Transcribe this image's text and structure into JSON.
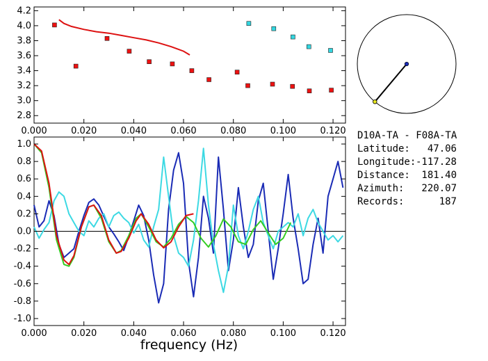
{
  "station_info": {
    "pair": "D10A-TA  -  F08A-TA",
    "latitude_label": "Latitude:",
    "latitude_value": "47.06",
    "longitude_label": "Longitude:",
    "longitude_value": "-117.28",
    "distance_label": "Distance:",
    "distance_value": "181.40",
    "azimuth_label": "Azimuth:",
    "azimuth_value": "220.07",
    "records_label": "Records:",
    "records_value": "187"
  },
  "chart_data": [
    {
      "type": "scatter",
      "xlim": [
        0.0,
        0.125
      ],
      "ylim": [
        2.7,
        4.25
      ],
      "x_ticks": [
        "0.000",
        "0.020",
        "0.040",
        "0.060",
        "0.080",
        "0.100",
        "0.120"
      ],
      "y_ticks": [
        "2.8",
        "3.0",
        "3.2",
        "3.4",
        "3.6",
        "3.8",
        "4.0",
        "4.2"
      ],
      "colors": {
        "red": "#ee1111",
        "cyan": "#33d6e0",
        "curve": "#dd1111"
      },
      "series": [
        {
          "marker": "red-square",
          "x": [
            0.0082,
            0.0168,
            0.0293,
            0.0382,
            0.0462,
            0.0555,
            0.0633,
            0.0702,
            0.0815,
            0.0858,
            0.0957,
            0.1037,
            0.1105,
            0.1193
          ],
          "y": [
            4.01,
            3.46,
            3.83,
            3.66,
            3.52,
            3.49,
            3.4,
            3.28,
            3.38,
            3.2,
            3.22,
            3.19,
            3.13,
            3.14
          ]
        },
        {
          "marker": "cyan-square",
          "x": [
            0.0862,
            0.0962,
            0.1039,
            0.1103,
            0.119
          ],
          "y": [
            4.03,
            3.96,
            3.85,
            3.72,
            3.67
          ]
        },
        {
          "marker": "red-line",
          "x": [
            0.01,
            0.012,
            0.015,
            0.02,
            0.025,
            0.03,
            0.035,
            0.04,
            0.045,
            0.05,
            0.055,
            0.06,
            0.0625
          ],
          "y": [
            4.08,
            4.03,
            3.99,
            3.95,
            3.92,
            3.9,
            3.87,
            3.84,
            3.81,
            3.77,
            3.72,
            3.66,
            3.61
          ]
        }
      ]
    },
    {
      "type": "polar-marker",
      "azimuth_deg": 220.07
    },
    {
      "type": "line",
      "xlim": [
        0.0,
        0.125
      ],
      "ylim": [
        -1.08,
        1.08
      ],
      "xlabel": "frequency (Hz)",
      "x_ticks": [
        "0.000",
        "0.020",
        "0.040",
        "0.060",
        "0.080",
        "0.100",
        "0.120"
      ],
      "y_ticks": [
        "1.0",
        "0.8",
        "0.6",
        "0.4",
        "0.2",
        "0.0",
        "-0.2",
        "-0.4",
        "-0.6",
        "-0.8",
        "-1.0"
      ],
      "y_tick_values": [
        1.0,
        0.8,
        0.6,
        0.4,
        0.2,
        0.0,
        -0.2,
        -0.4,
        -0.6,
        -0.8,
        -1.0
      ],
      "colors": {
        "blue": "#1a2bb5",
        "cyan": "#3cd9e3",
        "green": "#33cc22",
        "red": "#dd1111"
      },
      "series": [
        {
          "marker": "blue",
          "x": [
            0.0,
            0.002,
            0.004,
            0.006,
            0.008,
            0.01,
            0.012,
            0.014,
            0.016,
            0.018,
            0.02,
            0.022,
            0.024,
            0.026,
            0.028,
            0.03,
            0.032,
            0.034,
            0.036,
            0.038,
            0.04,
            0.042,
            0.044,
            0.046,
            0.048,
            0.05,
            0.052,
            0.054,
            0.056,
            0.058,
            0.06,
            0.062,
            0.064,
            0.066,
            0.068,
            0.07,
            0.072,
            0.074,
            0.076,
            0.078,
            0.08,
            0.082,
            0.084,
            0.086,
            0.088,
            0.09,
            0.092,
            0.094,
            0.096,
            0.098,
            0.1,
            0.102,
            0.104,
            0.106,
            0.108,
            0.11,
            0.112,
            0.114,
            0.116,
            0.118,
            0.12,
            0.122,
            0.124
          ],
          "y": [
            0.3,
            0.05,
            0.12,
            0.35,
            0.18,
            -0.15,
            -0.3,
            -0.25,
            -0.2,
            0.0,
            0.18,
            0.33,
            0.37,
            0.3,
            0.17,
            0.05,
            -0.03,
            -0.12,
            -0.22,
            -0.06,
            0.12,
            0.3,
            0.18,
            -0.1,
            -0.5,
            -0.82,
            -0.6,
            0.25,
            0.7,
            0.9,
            0.55,
            -0.35,
            -0.75,
            -0.3,
            0.4,
            0.15,
            -0.25,
            0.85,
            0.25,
            -0.45,
            -0.1,
            0.5,
            0.05,
            -0.3,
            -0.15,
            0.35,
            0.55,
            0.0,
            -0.55,
            -0.2,
            0.2,
            0.65,
            0.15,
            -0.2,
            -0.6,
            -0.55,
            -0.15,
            0.15,
            -0.25,
            0.4,
            0.6,
            0.8,
            0.5
          ]
        },
        {
          "marker": "cyan",
          "x": [
            0.0,
            0.002,
            0.004,
            0.006,
            0.008,
            0.01,
            0.012,
            0.014,
            0.016,
            0.018,
            0.02,
            0.022,
            0.024,
            0.026,
            0.028,
            0.03,
            0.032,
            0.034,
            0.036,
            0.038,
            0.04,
            0.042,
            0.044,
            0.046,
            0.048,
            0.05,
            0.052,
            0.054,
            0.056,
            0.058,
            0.06,
            0.062,
            0.064,
            0.066,
            0.068,
            0.07,
            0.072,
            0.074,
            0.076,
            0.078,
            0.08,
            0.082,
            0.084,
            0.086,
            0.088,
            0.09,
            0.092,
            0.094,
            0.096,
            0.098,
            0.1,
            0.102,
            0.104,
            0.106,
            0.108,
            0.11,
            0.112,
            0.114,
            0.116,
            0.118,
            0.12,
            0.122,
            0.124
          ],
          "y": [
            0.05,
            -0.08,
            0.02,
            0.1,
            0.35,
            0.45,
            0.4,
            0.2,
            0.1,
            0.0,
            -0.05,
            0.12,
            0.05,
            0.15,
            0.2,
            0.05,
            0.18,
            0.22,
            0.15,
            0.1,
            -0.02,
            0.08,
            -0.1,
            -0.18,
            0.05,
            0.25,
            0.85,
            0.4,
            -0.05,
            -0.25,
            -0.3,
            -0.4,
            -0.1,
            0.35,
            0.95,
            0.3,
            -0.15,
            -0.45,
            -0.7,
            -0.4,
            0.3,
            -0.05,
            -0.2,
            0.0,
            0.25,
            0.4,
            0.1,
            -0.05,
            -0.2,
            0.0,
            0.05,
            0.1,
            0.05,
            0.2,
            -0.05,
            0.15,
            0.25,
            0.1,
            0.0,
            -0.1,
            -0.05,
            -0.12,
            -0.05
          ]
        },
        {
          "marker": "green",
          "x": [
            0.0,
            0.003,
            0.006,
            0.009,
            0.012,
            0.014,
            0.016,
            0.019,
            0.022,
            0.024,
            0.027,
            0.03,
            0.033,
            0.035,
            0.038,
            0.041,
            0.043,
            0.046,
            0.049,
            0.052,
            0.055,
            0.058,
            0.061,
            0.064,
            0.067,
            0.07,
            0.073,
            0.076,
            0.079,
            0.082,
            0.085,
            0.088,
            0.091,
            0.094,
            0.097,
            0.1,
            0.103
          ],
          "y": [
            1.0,
            0.9,
            0.5,
            -0.1,
            -0.38,
            -0.4,
            -0.3,
            0.05,
            0.28,
            0.3,
            0.15,
            -0.12,
            -0.25,
            -0.22,
            -0.05,
            0.15,
            0.2,
            0.05,
            -0.12,
            -0.18,
            -0.08,
            0.08,
            0.17,
            0.1,
            -0.08,
            -0.18,
            -0.05,
            0.14,
            0.05,
            -0.12,
            -0.15,
            0.02,
            0.12,
            -0.02,
            -0.15,
            -0.08,
            0.1
          ]
        },
        {
          "marker": "red",
          "x": [
            0.0,
            0.003,
            0.006,
            0.009,
            0.012,
            0.014,
            0.016,
            0.019,
            0.022,
            0.024,
            0.027,
            0.03,
            0.033,
            0.035,
            0.038,
            0.041,
            0.043,
            0.046,
            0.049,
            0.052,
            0.055,
            0.058,
            0.061,
            0.064
          ],
          "y": [
            1.0,
            0.92,
            0.55,
            -0.05,
            -0.33,
            -0.38,
            -0.28,
            0.05,
            0.28,
            0.3,
            0.18,
            -0.1,
            -0.25,
            -0.23,
            -0.08,
            0.12,
            0.2,
            0.08,
            -0.1,
            -0.19,
            -0.12,
            0.05,
            0.18,
            0.2
          ]
        }
      ]
    }
  ]
}
